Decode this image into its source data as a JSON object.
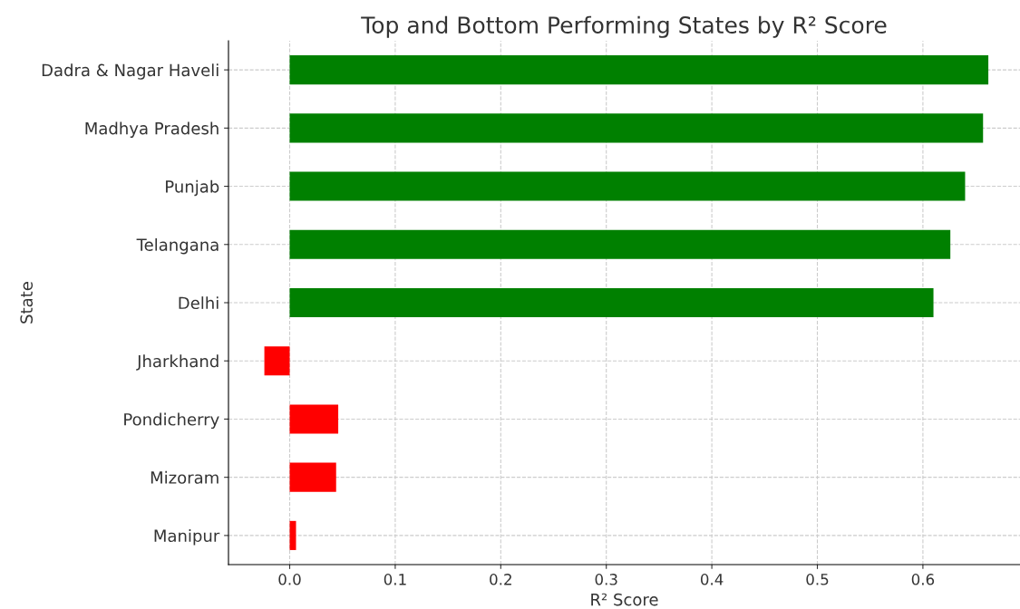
{
  "chart_data": {
    "type": "bar",
    "orientation": "horizontal",
    "title": "Top and Bottom Performing States by R² Score",
    "xlabel": "R² Score",
    "ylabel": "State",
    "categories": [
      "Dadra & Nagar Haveli",
      "Madhya Pradesh",
      "Punjab",
      "Telangana",
      "Delhi",
      "Jharkhand",
      "Pondicherry",
      "Mizoram",
      "Manipur"
    ],
    "values": [
      0.662,
      0.657,
      0.64,
      0.626,
      0.61,
      -0.024,
      0.046,
      0.044,
      0.006
    ],
    "colors": [
      "#008000",
      "#008000",
      "#008000",
      "#008000",
      "#008000",
      "#ff0000",
      "#ff0000",
      "#ff0000",
      "#ff0000"
    ],
    "xlim": [
      -0.058,
      0.692
    ],
    "xticks": [
      {
        "value": 0,
        "label": "0.0"
      },
      0.1,
      0.2,
      0.3,
      0.4,
      0.5,
      0.6
    ],
    "grid": true
  }
}
